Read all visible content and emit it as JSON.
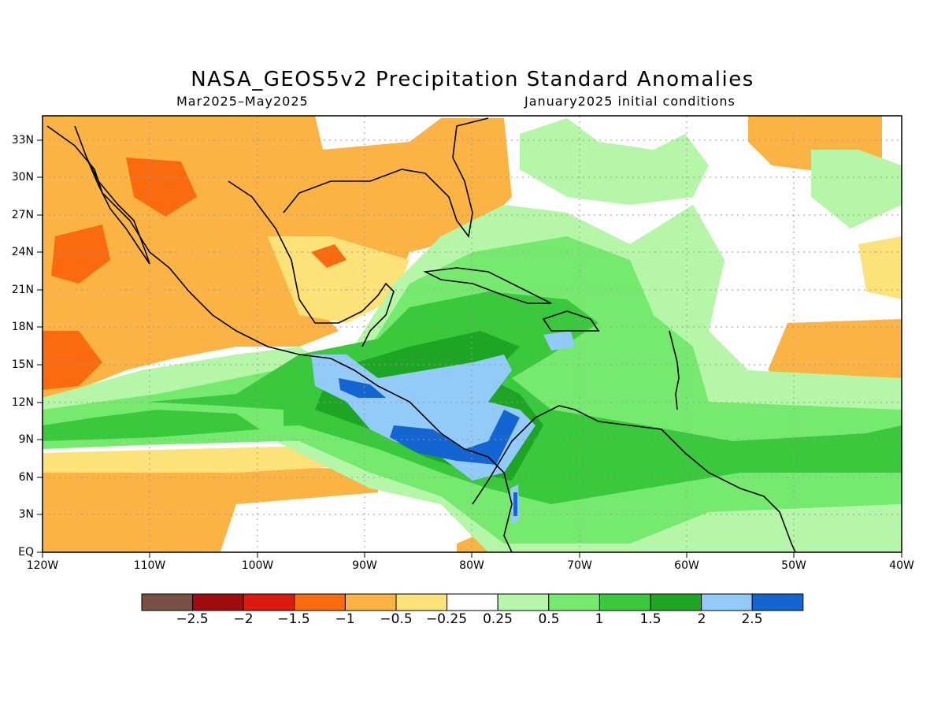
{
  "title": "NASA_GEOS5v2 Precipitation Standard Anomalies",
  "subtitle_left": "Mar2025–May2025",
  "subtitle_right": "January2025 initial conditions",
  "map": {
    "region": {
      "lon_min": -120,
      "lon_max": -40,
      "lat_min": 0,
      "lat_max": 35
    },
    "lat_ticks": [
      "33N",
      "30N",
      "27N",
      "24N",
      "21N",
      "18N",
      "15N",
      "12N",
      "9N",
      "6N",
      "3N",
      "EQ"
    ],
    "lat_values": [
      33,
      30,
      27,
      24,
      21,
      18,
      15,
      12,
      9,
      6,
      3,
      0
    ],
    "lon_ticks": [
      "120W",
      "110W",
      "100W",
      "90W",
      "80W",
      "70W",
      "60W",
      "50W",
      "40W"
    ],
    "lon_values": [
      -120,
      -110,
      -100,
      -90,
      -80,
      -70,
      -60,
      -50,
      -40
    ],
    "grid": true
  },
  "colorbar": {
    "colors": [
      "#7b4f44",
      "#a00d0d",
      "#dc1a0d",
      "#fa6a0e",
      "#fbb444",
      "#fde27a",
      "#ffffff",
      "#b5f6a8",
      "#76ea6e",
      "#3ac93c",
      "#1ea524",
      "#92cbf7",
      "#1464d2"
    ],
    "labels": [
      "−2.5",
      "−2",
      "−1.5",
      "−1",
      "−0.5",
      "−0.25",
      "0.25",
      "0.5",
      "1",
      "1.5",
      "2",
      "2.5"
    ]
  }
}
